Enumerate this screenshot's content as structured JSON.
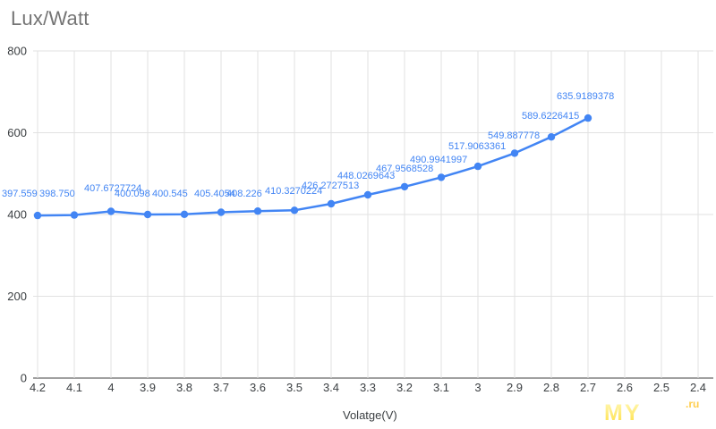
{
  "watermark": {
    "part1": "MY",
    "part2": ".ru"
  },
  "colors": {
    "series": "#4285f4",
    "grid": "#e2e2e2",
    "axis_line": "#424242",
    "tick_text": "#3c4043",
    "title_text": "#757575",
    "data_label": "#4285f4",
    "watermark_yellow": "#ffe14a",
    "watermark_orange": "#ffce4f"
  },
  "chart_data": {
    "type": "line",
    "title": "Lux/Watt",
    "xlabel": "Volatge(V)",
    "ylabel": "",
    "x_ticks": [
      "4.2",
      "4.1",
      "4",
      "3.9",
      "3.8",
      "3.7",
      "3.6",
      "3.5",
      "3.4",
      "3.3",
      "3.2",
      "3.1",
      "3",
      "2.9",
      "2.8",
      "2.7",
      "2.6",
      "2.5",
      "2.4"
    ],
    "y_ticks": [
      "800",
      "600",
      "400",
      "200",
      "0"
    ],
    "ylim": [
      0,
      800
    ],
    "grid": true,
    "legend": "none",
    "series": [
      {
        "name": "Lux/Watt",
        "x": [
          "4.2",
          "4.1",
          "4",
          "3.9",
          "3.8",
          "3.7",
          "3.6",
          "3.5",
          "3.4",
          "3.3",
          "3.2",
          "3.1",
          "3",
          "2.9",
          "2.8",
          "2.7"
        ],
        "values": [
          397.559,
          398.75,
          407.6727724,
          400.098,
          400.545,
          405.4054,
          408.226,
          410.3270224,
          426.2727513,
          448.0269643,
          467.9568528,
          490.9941997,
          517.9063361,
          549.887778,
          589.6226415,
          635.9189378
        ],
        "labels": [
          "397.559",
          "398.750",
          "407.6727724",
          "400.098",
          "400.545",
          "405.4054",
          "408.226",
          "410.3270224",
          "426.2727513",
          "448.0269643",
          "467.9568528",
          "490.9941997",
          "517.9063361",
          "549.887778",
          "589.6226415",
          "635.9189378"
        ]
      }
    ],
    "label_positions": [
      [
        2,
        211
      ],
      [
        44,
        211
      ],
      [
        94,
        205
      ],
      [
        128,
        211
      ],
      [
        170,
        211
      ],
      [
        217,
        211
      ],
      [
        253,
        211
      ],
      [
        296,
        208
      ],
      [
        337,
        202
      ],
      [
        377,
        191
      ],
      [
        420,
        183
      ],
      [
        458,
        173
      ],
      [
        501,
        158
      ],
      [
        545,
        146
      ],
      [
        583,
        124
      ],
      [
        622,
        102
      ]
    ]
  }
}
